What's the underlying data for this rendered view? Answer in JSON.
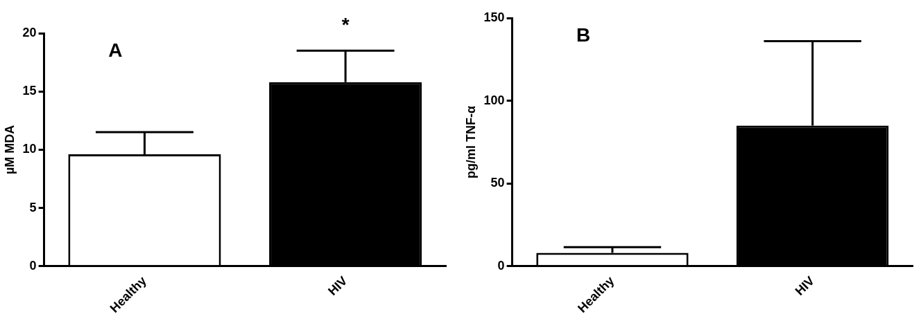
{
  "chart_data": [
    {
      "type": "bar",
      "title": "A",
      "y_label": "µM MDA",
      "categories": [
        "Healthy",
        "HIV"
      ],
      "values": [
        9.6,
        15.8
      ],
      "errors": [
        1.9,
        2.7
      ],
      "colors": [
        "#ffffff",
        "#000000"
      ],
      "ylim": [
        0,
        20
      ],
      "yticks": [
        0,
        5,
        10,
        15,
        20
      ],
      "grid": false,
      "annotations": [
        {
          "text": "*",
          "category": "HIV"
        }
      ]
    },
    {
      "type": "bar",
      "title": "B",
      "y_label": "pg/ml TNF-α",
      "categories": [
        "Healthy",
        "HIV"
      ],
      "values": [
        8,
        85
      ],
      "errors": [
        3.5,
        51
      ],
      "colors": [
        "#ffffff",
        "#000000"
      ],
      "ylim": [
        0,
        150
      ],
      "yticks": [
        0,
        50,
        100,
        150
      ],
      "grid": false,
      "annotations": []
    }
  ]
}
